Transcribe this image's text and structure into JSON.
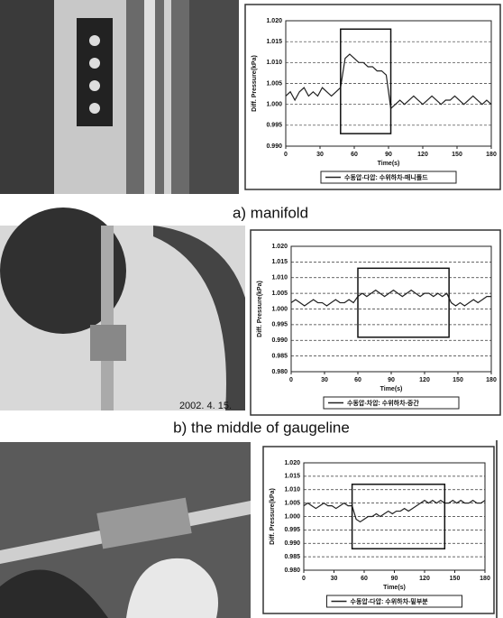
{
  "chart_data": [
    {
      "type": "line",
      "xlabel": "Time(s)",
      "ylabel": "Diff. Pressure(kPa)",
      "x": [
        0,
        4,
        8,
        12,
        16,
        20,
        24,
        28,
        32,
        36,
        40,
        44,
        48,
        52,
        56,
        60,
        64,
        68,
        72,
        76,
        80,
        84,
        88,
        92,
        96,
        100,
        104,
        108,
        112,
        116,
        120,
        124,
        128,
        132,
        136,
        140,
        144,
        148,
        152,
        156,
        160,
        164,
        168,
        172,
        176,
        180
      ],
      "series": [
        {
          "name": "수동압-다압: 수위하차-매니폴드",
          "color": "#222222",
          "values": [
            1.002,
            1.003,
            1.001,
            1.003,
            1.004,
            1.002,
            1.003,
            1.002,
            1.004,
            1.003,
            1.002,
            1.003,
            1.004,
            1.011,
            1.012,
            1.011,
            1.01,
            1.01,
            1.009,
            1.009,
            1.008,
            1.008,
            1.007,
            0.999,
            1.0,
            1.001,
            1.0,
            1.001,
            1.002,
            1.001,
            1.0,
            1.001,
            1.002,
            1.001,
            1.0,
            1.001,
            1.001,
            1.002,
            1.001,
            1.0,
            1.001,
            1.002,
            1.001,
            1.0,
            1.001,
            1.0
          ]
        }
      ],
      "xlim": [
        0,
        180
      ],
      "xticks": [
        0,
        30,
        60,
        90,
        120,
        150,
        180
      ],
      "ylim": [
        0.99,
        1.02
      ],
      "yticks": [
        {
          "value": 0.99,
          "label": "0.990"
        },
        {
          "value": 0.995,
          "label": "0.995"
        },
        {
          "value": 1.0,
          "label": "1.000"
        },
        {
          "value": 1.005,
          "label": "1.005"
        },
        {
          "value": 1.01,
          "label": "1.010"
        },
        {
          "value": 1.015,
          "label": "1.015"
        },
        {
          "value": 1.02,
          "label": "1.020"
        }
      ],
      "grid": true,
      "highlight": {
        "x": [
          48,
          92
        ],
        "y": [
          0.993,
          1.018
        ]
      }
    },
    {
      "type": "line",
      "xlabel": "Time(s)",
      "ylabel": "Diff. Pressure(kPa)",
      "x": [
        0,
        4,
        8,
        12,
        16,
        20,
        24,
        28,
        32,
        36,
        40,
        44,
        48,
        52,
        56,
        60,
        64,
        68,
        72,
        76,
        80,
        84,
        88,
        92,
        96,
        100,
        104,
        108,
        112,
        116,
        120,
        124,
        128,
        132,
        136,
        140,
        144,
        148,
        152,
        156,
        160,
        164,
        168,
        172,
        176,
        180
      ],
      "series": [
        {
          "name": "수동압-차압: 수위하차-중간",
          "color": "#222222",
          "values": [
            1.002,
            1.003,
            1.002,
            1.001,
            1.002,
            1.003,
            1.002,
            1.002,
            1.001,
            1.002,
            1.003,
            1.002,
            1.002,
            1.003,
            1.002,
            1.004,
            1.005,
            1.004,
            1.005,
            1.006,
            1.005,
            1.004,
            1.005,
            1.006,
            1.005,
            1.004,
            1.005,
            1.006,
            1.005,
            1.004,
            1.005,
            1.005,
            1.004,
            1.005,
            1.004,
            1.005,
            1.002,
            1.001,
            1.002,
            1.001,
            1.002,
            1.003,
            1.002,
            1.003,
            1.004,
            1.004
          ]
        }
      ],
      "xlim": [
        0,
        180
      ],
      "xticks": [
        0,
        30,
        60,
        90,
        120,
        150,
        180
      ],
      "ylim": [
        0.98,
        1.02
      ],
      "yticks": [
        {
          "value": 0.98,
          "label": "0.980"
        },
        {
          "value": 0.985,
          "label": "0.985"
        },
        {
          "value": 0.99,
          "label": "0.990"
        },
        {
          "value": 0.995,
          "label": "0.995"
        },
        {
          "value": 1.0,
          "label": "1.000"
        },
        {
          "value": 1.005,
          "label": "1.005"
        },
        {
          "value": 1.01,
          "label": "1.010"
        },
        {
          "value": 1.015,
          "label": "1.015"
        },
        {
          "value": 1.02,
          "label": "1.020"
        }
      ],
      "grid": true,
      "highlight": {
        "x": [
          60,
          142
        ],
        "y": [
          0.991,
          1.013
        ]
      }
    },
    {
      "type": "line",
      "xlabel": "Time(s)",
      "ylabel": "Diff. Pressure(kPa)",
      "x": [
        0,
        4,
        8,
        12,
        16,
        20,
        24,
        28,
        32,
        36,
        40,
        44,
        48,
        52,
        56,
        60,
        64,
        68,
        72,
        76,
        80,
        84,
        88,
        92,
        96,
        100,
        104,
        108,
        112,
        116,
        120,
        124,
        128,
        132,
        136,
        140,
        144,
        148,
        152,
        156,
        160,
        164,
        168,
        172,
        176,
        180
      ],
      "series": [
        {
          "name": "수동압-다압: 수위하차-밑부분",
          "color": "#222222",
          "values": [
            1.004,
            1.005,
            1.004,
            1.003,
            1.004,
            1.005,
            1.004,
            1.004,
            1.003,
            1.004,
            1.005,
            1.004,
            1.004,
            0.999,
            0.998,
            0.999,
            1.0,
            1.0,
            1.001,
            1.0,
            1.001,
            1.002,
            1.001,
            1.002,
            1.002,
            1.003,
            1.002,
            1.003,
            1.004,
            1.005,
            1.006,
            1.005,
            1.006,
            1.005,
            1.006,
            1.005,
            1.005,
            1.006,
            1.005,
            1.006,
            1.005,
            1.005,
            1.006,
            1.005,
            1.005,
            1.006
          ]
        }
      ],
      "xlim": [
        0,
        180
      ],
      "xticks": [
        0,
        30,
        60,
        90,
        120,
        150,
        180
      ],
      "ylim": [
        0.98,
        1.02
      ],
      "yticks": [
        {
          "value": 0.98,
          "label": "0.980"
        },
        {
          "value": 0.985,
          "label": "0.985"
        },
        {
          "value": 0.99,
          "label": "0.990"
        },
        {
          "value": 0.995,
          "label": "0.995"
        },
        {
          "value": 1.0,
          "label": "1.000"
        },
        {
          "value": 1.005,
          "label": "1.005"
        },
        {
          "value": 1.01,
          "label": "1.010"
        },
        {
          "value": 1.015,
          "label": "1.015"
        },
        {
          "value": 1.02,
          "label": "1.020"
        }
      ],
      "grid": true,
      "highlight": {
        "x": [
          48,
          140
        ],
        "y": [
          0.988,
          1.012
        ]
      }
    }
  ],
  "figure": {
    "captions": [
      "a) manifold",
      "b) the middle of gaugeline"
    ],
    "photo_stamp": "2002. 4. 15."
  }
}
